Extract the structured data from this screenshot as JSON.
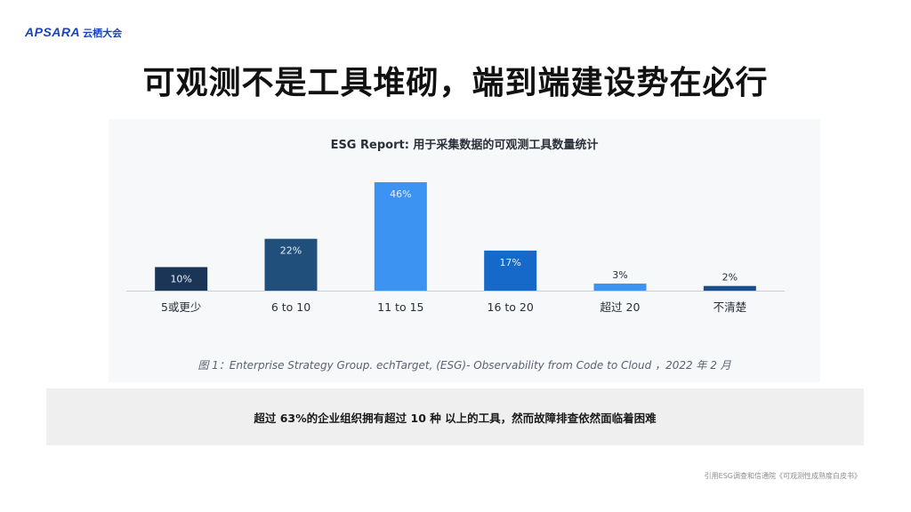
{
  "header": {
    "logo_mark": "APSARA",
    "logo_cn": "云栖大会"
  },
  "slide": {
    "title": "可观测不是工具堆砌，端到端建设势在必行",
    "caption": "图 1：Enterprise Strategy Group. echTarget, (ESG)- Observability from Code to Cloud ，2022 年 2 月",
    "summary": "超过 63%的企业组织拥有超过 10 种 以上的工具，然而故障排查依然面临着困难",
    "footnote": "引用ESG调查和信通院《可观测性成熟度白皮书》"
  },
  "chart_data": {
    "type": "bar",
    "title": "ESG Report: 用于采集数据的可观测工具数量统计",
    "categories": [
      "5或更少",
      "6 to 10",
      "11 to 15",
      "16 to 20",
      "超过 20",
      "不清楚"
    ],
    "values": [
      10,
      22,
      46,
      17,
      3,
      2
    ],
    "value_labels": [
      "10%",
      "22%",
      "46%",
      "17%",
      "3%",
      "2%"
    ],
    "unit": "%",
    "ylim": [
      0,
      46
    ],
    "grid": false,
    "colors": [
      "#1b3557",
      "#1f4f7a",
      "#3d93f2",
      "#1669c9",
      "#3d93f2",
      "#1a4f8c"
    ],
    "label_inside": [
      true,
      true,
      true,
      true,
      false,
      false
    ],
    "label_color_inside": "#e8f0fb",
    "label_color_outside": "#2a2f3a",
    "axis_color": "#c9cfd8"
  }
}
